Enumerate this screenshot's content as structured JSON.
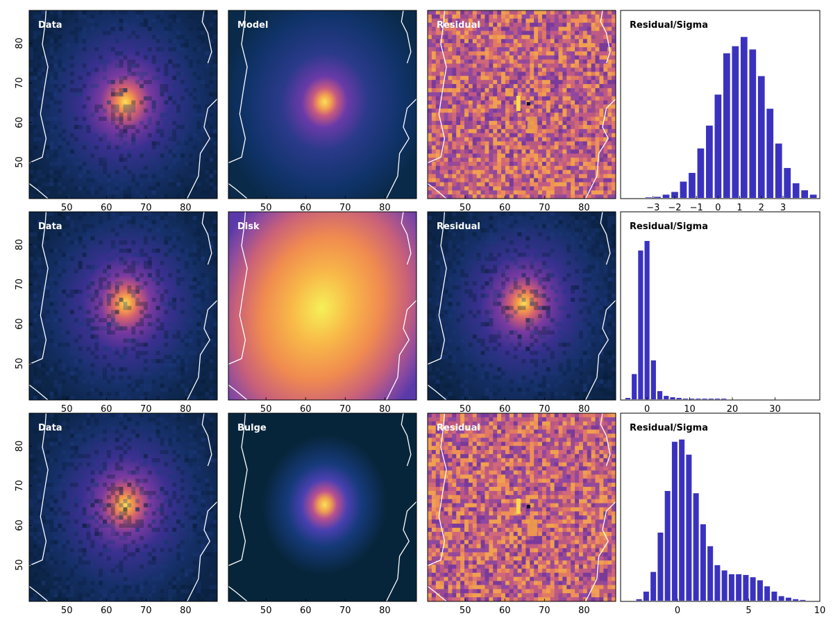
{
  "colors": {
    "hist_bar": "#3a32bf",
    "contour": "#ffffff",
    "frame": "#000000",
    "cmap_stops": [
      "#0b1f3a",
      "#10305a",
      "#24307a",
      "#4a2f9a",
      "#7a3a9a",
      "#b0508a",
      "#e07060",
      "#f5a048",
      "#f9e05a"
    ]
  },
  "chart_data": [
    {
      "type": "heatmap",
      "panel": "data",
      "row": 0,
      "label": "Data",
      "xticks": [
        50,
        60,
        70,
        80
      ],
      "yticks": [
        50,
        60,
        70,
        80
      ],
      "xlim": [
        40.5,
        88
      ],
      "ylim": [
        40.8,
        88.3
      ],
      "peak": [
        64.8,
        65.2
      ],
      "colormap": "dark-blue to yellow",
      "contours": true
    },
    {
      "type": "heatmap",
      "panel": "model",
      "row": 0,
      "label": "Model",
      "xticks": [
        50,
        60,
        70,
        80
      ],
      "xlim": [
        40.5,
        88
      ],
      "ylim": [
        40.8,
        88.3
      ],
      "peak": [
        64.8,
        65.2
      ],
      "colormap": "dark-blue to yellow",
      "contours": true
    },
    {
      "type": "heatmap",
      "panel": "residual",
      "row": 0,
      "label": "Residual",
      "xticks": [
        50,
        60,
        70,
        80
      ],
      "xlim": [
        40.5,
        88
      ],
      "ylim": [
        40.8,
        88.3
      ],
      "colormap": "purple-orange noise",
      "contours": true
    },
    {
      "type": "bar",
      "panel": "hist",
      "row": 0,
      "label": "Residual/Sigma",
      "xticks": [
        -3,
        -2,
        -1,
        0,
        1,
        2,
        3
      ],
      "xtick_labels": [
        "−3",
        "−2",
        "−1",
        "0",
        "1",
        "2",
        "3"
      ],
      "xlim": [
        -4.5,
        4.7
      ],
      "ylim": [
        0,
        295
      ],
      "x": [
        -3.2,
        -2.8,
        -2.4,
        -2.0,
        -1.6,
        -1.2,
        -0.8,
        -0.4,
        0.0,
        0.4,
        0.8,
        1.2,
        1.6,
        2.0,
        2.4,
        2.8,
        3.2,
        3.6,
        4.0,
        4.4
      ],
      "values": [
        1,
        2,
        6,
        11,
        30,
        46,
        91,
        133,
        190,
        266,
        279,
        296,
        273,
        224,
        164,
        100,
        55,
        27,
        14,
        6
      ]
    },
    {
      "type": "heatmap",
      "panel": "data",
      "row": 1,
      "label": "Data",
      "xticks": [
        50,
        60,
        70,
        80
      ],
      "yticks": [
        50,
        60,
        70,
        80
      ],
      "xlim": [
        40.5,
        88
      ],
      "ylim": [
        40.8,
        88.3
      ],
      "peak": [
        64.8,
        65.2
      ],
      "colormap": "dark-blue to yellow",
      "contours": true
    },
    {
      "type": "heatmap",
      "panel": "disk",
      "row": 1,
      "label": "Disk",
      "xticks": [
        50,
        60,
        70,
        80
      ],
      "xlim": [
        40.5,
        88
      ],
      "ylim": [
        40.8,
        88.3
      ],
      "peak": [
        64.0,
        64.0
      ],
      "colormap": "dark-blue to yellow",
      "contours": true
    },
    {
      "type": "heatmap",
      "panel": "residual",
      "row": 1,
      "label": "Residual",
      "xticks": [
        50,
        60,
        70,
        80
      ],
      "xlim": [
        40.5,
        88
      ],
      "ylim": [
        40.8,
        88.3
      ],
      "peak": [
        64.8,
        65.2
      ],
      "colormap": "dark-blue to yellow",
      "contours": true
    },
    {
      "type": "bar",
      "panel": "hist",
      "row": 1,
      "label": "Residual/Sigma",
      "xticks": [
        0,
        10,
        20,
        30
      ],
      "xtick_labels": [
        "0",
        "10",
        "20",
        "30"
      ],
      "xlim": [
        -6.2,
        40.5
      ],
      "ylim": [
        0,
        235
      ],
      "x": [
        -4.5,
        -3.0,
        -1.5,
        0.0,
        1.5,
        3.0,
        4.5,
        6.0,
        7.5,
        9.0,
        10.5,
        12.0,
        13.5,
        15.0,
        16.5,
        18.0
      ],
      "values": [
        2,
        37,
        218,
        232,
        57,
        12,
        5,
        3,
        2,
        1,
        1,
        1,
        1,
        1,
        1,
        1
      ]
    },
    {
      "type": "heatmap",
      "panel": "data",
      "row": 2,
      "label": "Data",
      "xticks": [
        50,
        60,
        70,
        80
      ],
      "yticks": [
        50,
        60,
        70,
        80
      ],
      "xlim": [
        40.5,
        88
      ],
      "ylim": [
        40.8,
        88.3
      ],
      "peak": [
        64.8,
        65.2
      ],
      "colormap": "dark-blue to yellow",
      "contours": true
    },
    {
      "type": "heatmap",
      "panel": "bulge",
      "row": 2,
      "label": "Bulge",
      "xticks": [
        50,
        60,
        70,
        80
      ],
      "xlim": [
        40.5,
        88
      ],
      "ylim": [
        40.8,
        88.3
      ],
      "peak": [
        64.8,
        65.2
      ],
      "colormap": "dark-blue to yellow",
      "contours": true
    },
    {
      "type": "heatmap",
      "panel": "residual",
      "row": 2,
      "label": "Residual",
      "xticks": [
        50,
        60,
        70,
        80
      ],
      "xlim": [
        40.5,
        88
      ],
      "ylim": [
        40.8,
        88.3
      ],
      "colormap": "purple-orange noise",
      "contours": true
    },
    {
      "type": "bar",
      "panel": "hist",
      "row": 2,
      "label": "Residual/Sigma",
      "xticks": [
        0,
        5,
        10
      ],
      "xtick_labels": [
        "0",
        "5",
        "10"
      ],
      "xlim": [
        -4.0,
        10.0
      ],
      "ylim": [
        0,
        212
      ],
      "x": [
        -2.7,
        -2.2,
        -1.7,
        -1.2,
        -0.7,
        -0.2,
        0.3,
        0.8,
        1.3,
        1.8,
        2.3,
        2.8,
        3.3,
        3.8,
        4.3,
        4.8,
        5.3,
        5.8,
        6.3,
        6.8,
        7.3,
        7.8,
        8.3,
        8.8
      ],
      "values": [
        2,
        12,
        38,
        90,
        145,
        210,
        213,
        193,
        142,
        101,
        72,
        47,
        40,
        35,
        35,
        34,
        31,
        27,
        19,
        12,
        6,
        4,
        2,
        1
      ]
    }
  ]
}
